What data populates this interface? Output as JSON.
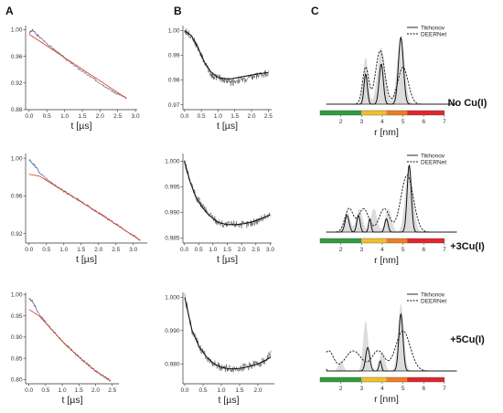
{
  "panel_labels": [
    "A",
    "B",
    "C"
  ],
  "conditions": [
    "No Cu(I)",
    "+3Cu(I)",
    "+5Cu(I)"
  ],
  "colors": {
    "experimental_trace": "#666666",
    "background_fit": "#d9342b",
    "blue_trace": "#3a5aa8",
    "fit_line": "#111111",
    "distribution_band": "#dcdcdc",
    "scale_green": "#2e9d3a",
    "scale_yellow": "#f0c02a",
    "scale_orange": "#ee7d22",
    "scale_red": "#e0262a"
  },
  "chart_data": [
    {
      "id": "A1",
      "type": "line",
      "xlabel": "t [µs]",
      "xlim": [
        -0.1,
        3.05
      ],
      "ylim": [
        0.88,
        1.006
      ],
      "xticks": [
        "0.0",
        "0.5",
        "1.0",
        "1.5",
        "2.0",
        "2.5",
        "3.0"
      ],
      "yticks": [
        "0.88",
        "0.92",
        "0.96",
        "1.00"
      ],
      "series": [
        {
          "role": "raw",
          "x": [
            0.0,
            0.1,
            0.2,
            0.4,
            0.8,
            1.2,
            1.6,
            2.0,
            2.4,
            2.75
          ],
          "y": [
            0.995,
            0.999,
            0.993,
            0.984,
            0.966,
            0.949,
            0.934,
            0.92,
            0.906,
            0.897
          ]
        },
        {
          "role": "background",
          "x": [
            0.0,
            2.75
          ],
          "y": [
            0.993,
            0.897
          ]
        }
      ]
    },
    {
      "id": "B1",
      "type": "line",
      "xlabel": "t [µs]",
      "xlim": [
        -0.05,
        2.6
      ],
      "ylim": [
        0.968,
        1.002
      ],
      "xticks": [
        "0.0",
        "0.5",
        "1.0",
        "1.5",
        "2.0",
        "2.5"
      ],
      "yticks": [
        "0.97",
        "0.98",
        "0.99",
        "1.00"
      ],
      "series": [
        {
          "role": "raw",
          "x": [
            0.0,
            0.2,
            0.4,
            0.6,
            0.8,
            1.0,
            1.2,
            1.4,
            1.6,
            1.8,
            2.0,
            2.2,
            2.5
          ],
          "y": [
            1.0,
            0.998,
            0.993,
            0.987,
            0.982,
            0.981,
            0.98,
            0.979,
            0.98,
            0.98,
            0.981,
            0.982,
            0.983
          ]
        },
        {
          "role": "fit",
          "x": [
            0.0,
            0.2,
            0.4,
            0.6,
            0.8,
            1.0,
            1.2,
            1.4,
            1.6,
            1.8,
            2.0,
            2.2,
            2.5
          ],
          "y": [
            1.0,
            0.998,
            0.993,
            0.987,
            0.983,
            0.981,
            0.9805,
            0.9805,
            0.981,
            0.9815,
            0.982,
            0.9825,
            0.983
          ]
        }
      ]
    },
    {
      "id": "C1",
      "type": "line",
      "xlabel": "r [nm]",
      "xlim": [
        1.0,
        7.4
      ],
      "ylim": [
        0,
        1.12
      ],
      "xticks": [
        "2",
        "3",
        "4",
        "5",
        "6",
        "7"
      ],
      "legend": [
        "Tikhonov",
        "DEERNet"
      ],
      "scale_stops": [
        1.0,
        3.0,
        4.2,
        5.2,
        7.0
      ],
      "series": [
        {
          "role": "band",
          "peaks": [
            [
              3.2,
              0.7,
              0.12
            ],
            [
              3.95,
              0.85,
              0.18
            ],
            [
              4.9,
              1.0,
              0.18
            ]
          ]
        },
        {
          "role": "tikhonov",
          "peaks": [
            [
              3.2,
              0.45,
              0.08
            ],
            [
              3.95,
              0.6,
              0.1
            ],
            [
              4.9,
              1.0,
              0.12
            ]
          ]
        },
        {
          "role": "deernet",
          "peaks": [
            [
              3.2,
              0.55,
              0.15
            ],
            [
              3.9,
              0.8,
              0.22
            ],
            [
              5.0,
              0.55,
              0.25
            ]
          ]
        }
      ]
    },
    {
      "id": "A2",
      "type": "line",
      "xlabel": "t [µs]",
      "xlim": [
        -0.1,
        3.4
      ],
      "ylim": [
        0.91,
        1.005
      ],
      "xticks": [
        "0.0",
        "0.5",
        "1.0",
        "1.5",
        "2.0",
        "2.5",
        "3.0"
      ],
      "yticks": [
        "0.92",
        "0.96",
        "1.00"
      ],
      "series": [
        {
          "role": "raw",
          "x": [
            0.0,
            0.15,
            0.3,
            0.6,
            1.0,
            1.5,
            2.0,
            2.5,
            3.0,
            3.2
          ],
          "y": [
            0.998,
            0.993,
            0.985,
            0.975,
            0.965,
            0.954,
            0.942,
            0.93,
            0.918,
            0.913
          ]
        },
        {
          "role": "background",
          "x": [
            0.0,
            0.3,
            1.0,
            2.0,
            3.2
          ],
          "y": [
            0.983,
            0.981,
            0.965,
            0.942,
            0.913
          ]
        }
      ]
    },
    {
      "id": "B2",
      "type": "line",
      "xlabel": "t [µs]",
      "xlim": [
        -0.05,
        3.05
      ],
      "ylim": [
        0.984,
        1.0015
      ],
      "xticks": [
        "0.0",
        "0.5",
        "1.0",
        "1.5",
        "2.0",
        "2.5",
        "3.0"
      ],
      "yticks": [
        "0.985",
        "0.990",
        "0.995",
        "1.000"
      ],
      "series": [
        {
          "role": "raw",
          "x": [
            0.0,
            0.2,
            0.4,
            0.6,
            0.8,
            1.0,
            1.2,
            1.5,
            1.8,
            2.1,
            2.4,
            2.7,
            3.0
          ],
          "y": [
            1.0,
            0.996,
            0.993,
            0.9915,
            0.99,
            0.989,
            0.988,
            0.9875,
            0.9878,
            0.9875,
            0.988,
            0.9888,
            0.9895
          ]
        },
        {
          "role": "fit",
          "x": [
            0.0,
            0.2,
            0.4,
            0.6,
            0.8,
            1.0,
            1.2,
            1.5,
            1.8,
            2.1,
            2.4,
            2.7,
            3.0
          ],
          "y": [
            1.0,
            0.996,
            0.993,
            0.9912,
            0.9898,
            0.9888,
            0.988,
            0.9876,
            0.9876,
            0.9878,
            0.9882,
            0.9888,
            0.9895
          ]
        }
      ]
    },
    {
      "id": "C2",
      "type": "line",
      "xlabel": "r [nm]",
      "xlim": [
        1.0,
        7.4
      ],
      "ylim": [
        0,
        1.12
      ],
      "xticks": [
        "2",
        "3",
        "4",
        "5",
        "6",
        "7"
      ],
      "legend": [
        "Tikhonov",
        "DEERNet"
      ],
      "scale_stops": [
        1.0,
        3.0,
        4.2,
        5.2,
        7.0
      ],
      "series": [
        {
          "role": "band",
          "peaks": [
            [
              2.3,
              0.3,
              0.15
            ],
            [
              2.9,
              0.35,
              0.15
            ],
            [
              3.6,
              0.35,
              0.15
            ],
            [
              4.3,
              0.35,
              0.15
            ],
            [
              5.3,
              1.0,
              0.18
            ]
          ]
        },
        {
          "role": "tikhonov",
          "peaks": [
            [
              2.3,
              0.25,
              0.1
            ],
            [
              2.85,
              0.25,
              0.08
            ],
            [
              3.4,
              0.2,
              0.06
            ],
            [
              4.2,
              0.2,
              0.08
            ],
            [
              5.3,
              1.0,
              0.1
            ]
          ]
        },
        {
          "role": "deernet",
          "peaks": [
            [
              2.4,
              0.35,
              0.2
            ],
            [
              3.1,
              0.35,
              0.25
            ],
            [
              4.1,
              0.35,
              0.25
            ],
            [
              5.2,
              0.85,
              0.3
            ]
          ]
        }
      ]
    },
    {
      "id": "A3",
      "type": "line",
      "xlabel": "t [µs]",
      "xlim": [
        -0.1,
        2.7
      ],
      "ylim": [
        0.79,
        1.005
      ],
      "xticks": [
        "0.0",
        "0.5",
        "1.0",
        "1.5",
        "2.0",
        "2.5"
      ],
      "yticks": [
        "0.80",
        "0.85",
        "0.90",
        "0.95",
        "1.00"
      ],
      "series": [
        {
          "role": "raw",
          "x": [
            0.0,
            0.1,
            0.3,
            0.6,
            1.0,
            1.5,
            2.0,
            2.45
          ],
          "y": [
            0.99,
            0.985,
            0.955,
            0.925,
            0.89,
            0.853,
            0.82,
            0.797
          ]
        },
        {
          "role": "background",
          "x": [
            0.0,
            0.3,
            0.6,
            1.0,
            1.5,
            2.0,
            2.45
          ],
          "y": [
            0.965,
            0.95,
            0.925,
            0.89,
            0.853,
            0.82,
            0.797
          ]
        }
      ]
    },
    {
      "id": "B3",
      "type": "line",
      "xlabel": "t [µs]",
      "xlim": [
        -0.05,
        2.45
      ],
      "ylim": [
        0.974,
        1.0015
      ],
      "xticks": [
        "0.0",
        "0.5",
        "1.0",
        "1.5",
        "2.0"
      ],
      "yticks": [
        "0.980",
        "0.990",
        "1.000"
      ],
      "series": [
        {
          "role": "raw",
          "x": [
            0.0,
            0.2,
            0.4,
            0.6,
            0.8,
            1.0,
            1.2,
            1.4,
            1.6,
            1.8,
            2.0,
            2.2,
            2.35
          ],
          "y": [
            1.0,
            0.99,
            0.985,
            0.982,
            0.98,
            0.979,
            0.9785,
            0.9785,
            0.979,
            0.9795,
            0.98,
            0.981,
            0.983
          ]
        },
        {
          "role": "fit",
          "x": [
            0.0,
            0.2,
            0.4,
            0.6,
            0.8,
            1.0,
            1.2,
            1.4,
            1.6,
            1.8,
            2.0,
            2.2,
            2.35
          ],
          "y": [
            1.0,
            0.99,
            0.985,
            0.982,
            0.98,
            0.979,
            0.9785,
            0.9785,
            0.9788,
            0.9793,
            0.98,
            0.981,
            0.982
          ]
        }
      ]
    },
    {
      "id": "C3",
      "type": "line",
      "xlabel": "r [nm]",
      "xlim": [
        1.0,
        7.4
      ],
      "ylim": [
        0,
        1.12
      ],
      "xticks": [
        "2",
        "3",
        "4",
        "5",
        "6",
        "7"
      ],
      "legend": [
        "Tikhonov",
        "DEERNet"
      ],
      "scale_stops": [
        1.0,
        3.0,
        4.2,
        5.2,
        7.0
      ],
      "series": [
        {
          "role": "band",
          "peaks": [
            [
              2.0,
              0.15,
              0.12
            ],
            [
              3.2,
              0.75,
              0.12
            ],
            [
              4.0,
              0.3,
              0.12
            ],
            [
              4.9,
              1.0,
              0.14
            ]
          ]
        },
        {
          "role": "tikhonov",
          "peaks": [
            [
              1.2,
              0.2,
              0.05
            ],
            [
              3.3,
              0.35,
              0.1
            ],
            [
              3.9,
              0.15,
              0.06
            ],
            [
              4.9,
              0.85,
              0.1
            ]
          ]
        },
        {
          "role": "deernet",
          "peaks": [
            [
              1.4,
              0.3,
              0.25
            ],
            [
              2.6,
              0.3,
              0.4
            ],
            [
              3.8,
              0.3,
              0.3
            ],
            [
              5.0,
              0.6,
              0.35
            ]
          ]
        }
      ]
    }
  ]
}
